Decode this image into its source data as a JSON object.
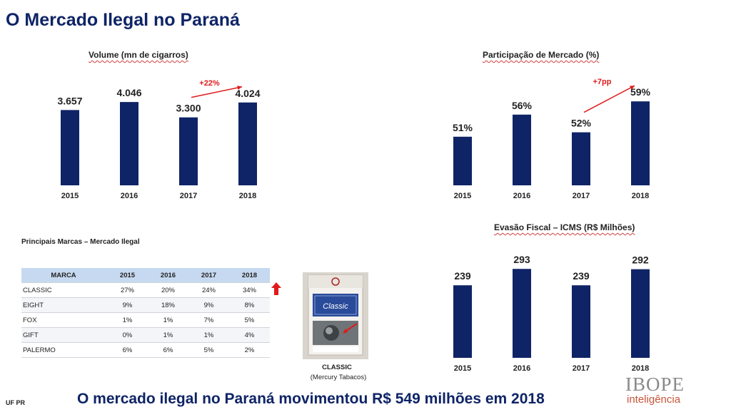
{
  "page": {
    "title": "O Mercado Ilegal no Paraná",
    "footer_left": "UF PR",
    "headline": "O mercado ilegal no Paraná movimentou R$ 549 milhões em 2018"
  },
  "brand": {
    "top": "IBOPE",
    "bottom": "inteligência"
  },
  "chart_data": [
    {
      "type": "bar",
      "title": "Volume (mn de cigarros)",
      "categories": [
        "2015",
        "2016",
        "2017",
        "2018"
      ],
      "values": [
        3657,
        4046,
        3300,
        4024
      ],
      "value_labels": [
        "3.657",
        "4.046",
        "3.300",
        "4.024"
      ],
      "annotation": "+22%",
      "ylim": [
        0,
        4500
      ]
    },
    {
      "type": "bar",
      "title": "Participação de Mercado (%)",
      "categories": [
        "2015",
        "2016",
        "2017",
        "2018"
      ],
      "values": [
        51,
        56,
        52,
        59
      ],
      "value_labels": [
        "51%",
        "56%",
        "52%",
        "59%"
      ],
      "annotation": "+7pp",
      "ylim": [
        40,
        65
      ]
    },
    {
      "type": "bar",
      "title": "Evasão Fiscal – ICMS (R$ Milhões)",
      "categories": [
        "2015",
        "2016",
        "2017",
        "2018"
      ],
      "values": [
        239,
        293,
        239,
        292
      ],
      "value_labels": [
        "239",
        "293",
        "239",
        "292"
      ],
      "ylim": [
        0,
        310
      ]
    }
  ],
  "brands_table": {
    "title": "Principais Marcas – Mercado Ilegal",
    "headers": [
      "MARCA",
      "2015",
      "2016",
      "2017",
      "2018"
    ],
    "rows": [
      [
        "CLASSIC",
        "27%",
        "20%",
        "24%",
        "34%"
      ],
      [
        "EIGHT",
        "9%",
        "18%",
        "9%",
        "8%"
      ],
      [
        "FOX",
        "1%",
        "1%",
        "7%",
        "5%"
      ],
      [
        "GIFT",
        "0%",
        "1%",
        "1%",
        "4%"
      ],
      [
        "PALERMO",
        "6%",
        "6%",
        "5%",
        "2%"
      ]
    ]
  },
  "pack": {
    "brand_text": "Classic",
    "label": "CLASSIC",
    "maker": "(Mercury Tabacos)"
  },
  "colors": {
    "bar": "#0f2466",
    "accent": "#e01b1b",
    "header_fill": "#c6d9f0"
  }
}
